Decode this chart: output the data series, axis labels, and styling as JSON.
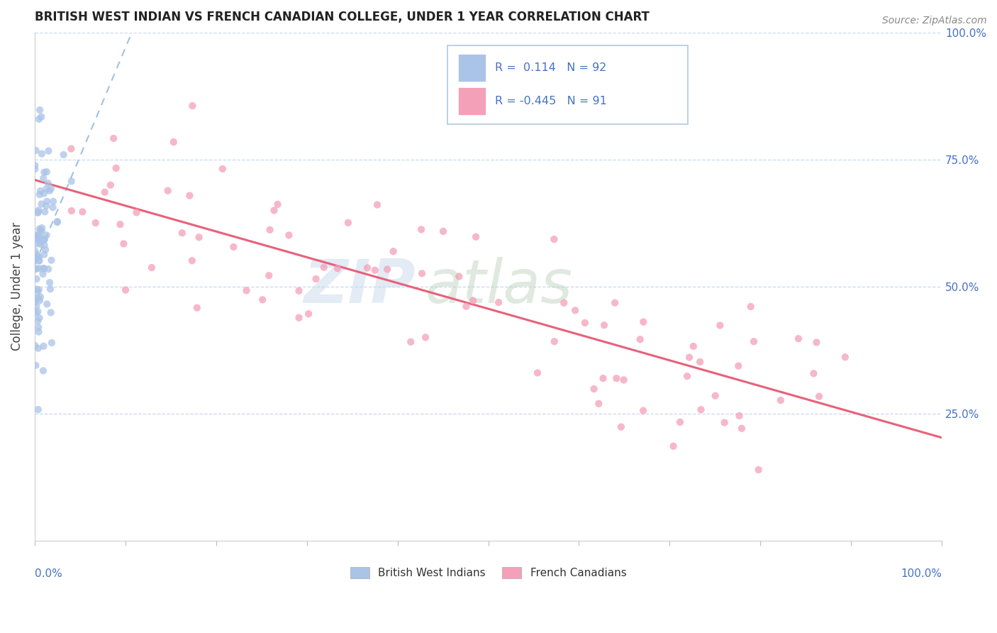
{
  "title": "BRITISH WEST INDIAN VS FRENCH CANADIAN COLLEGE, UNDER 1 YEAR CORRELATION CHART",
  "source": "Source: ZipAtlas.com",
  "ylabel": "College, Under 1 year",
  "legend_labels": [
    "British West Indians",
    "French Canadians"
  ],
  "r_bwi": 0.114,
  "n_bwi": 92,
  "r_fc": -0.445,
  "n_fc": 91,
  "bwi_color": "#aac4e8",
  "fc_color": "#f4a0b8",
  "bwi_edge_color": "#7aaad0",
  "fc_edge_color": "#f080a0",
  "bwi_line_color": "#90b8d8",
  "fc_line_color": "#e8607a",
  "grid_color": "#c8d8ee",
  "background_color": "#ffffff",
  "text_color": "#4472c4",
  "title_color": "#222222",
  "source_color": "#888888"
}
